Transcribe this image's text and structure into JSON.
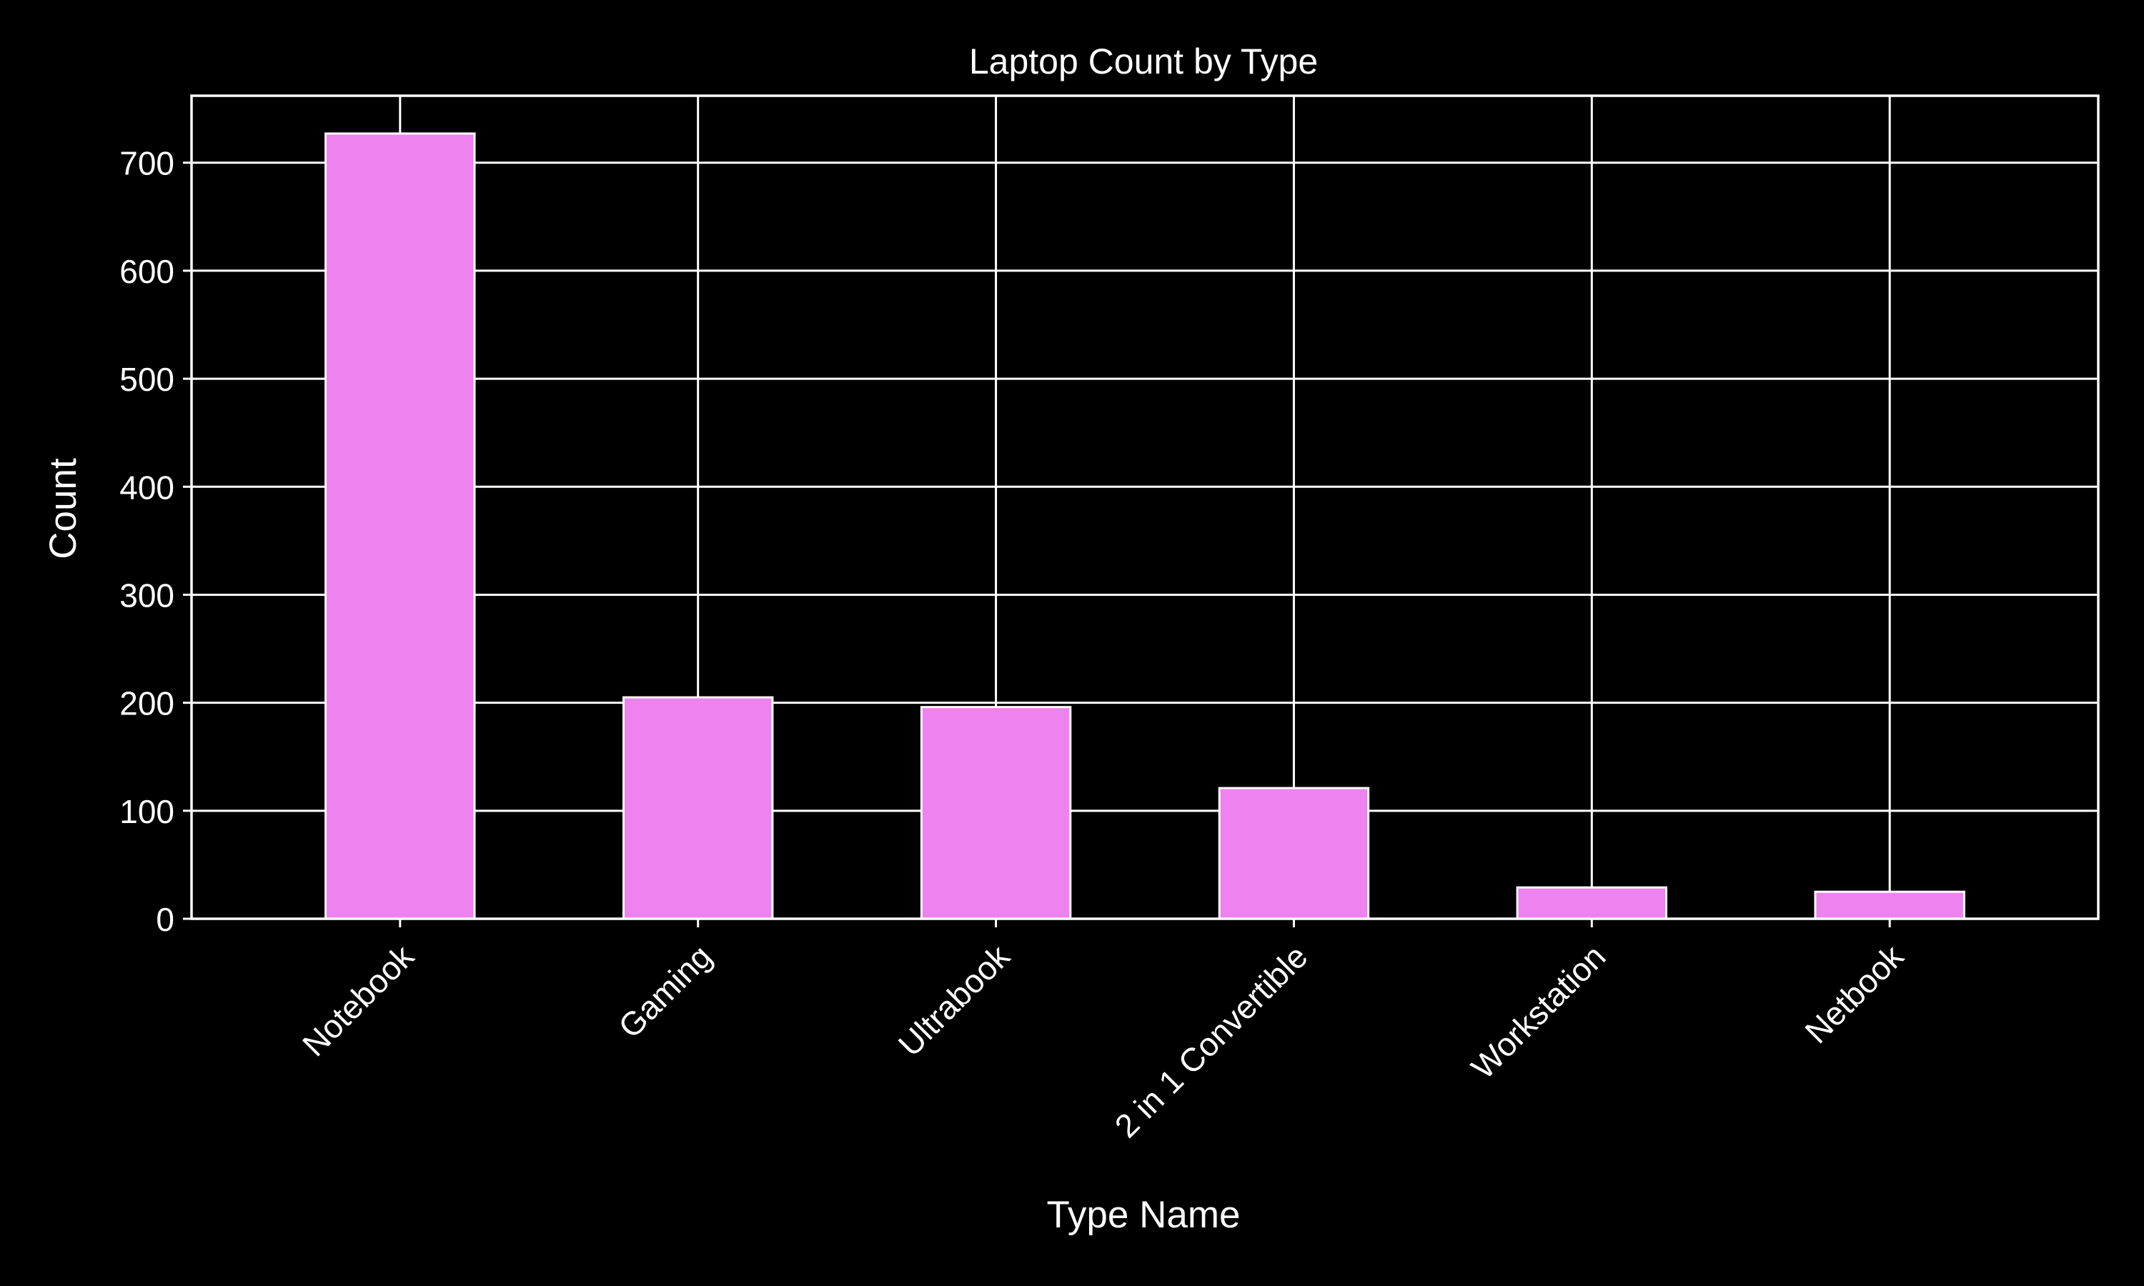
{
  "chart_data": {
    "type": "bar",
    "title": "Laptop Count by Type",
    "xlabel": "Type Name",
    "ylabel": "Count",
    "categories": [
      "Notebook",
      "Gaming",
      "Ultrabook",
      "2 in 1 Convertible",
      "Workstation",
      "Netbook"
    ],
    "values": [
      727,
      205,
      196,
      121,
      29,
      25
    ],
    "ylim": [
      0,
      762
    ],
    "yticks": [
      0,
      100,
      200,
      300,
      400,
      500,
      600,
      700
    ],
    "grid": true,
    "legend": "none"
  },
  "colors": {
    "background": "#000000",
    "bar_fill": "#ee82ee",
    "bar_edge": "#ffffff",
    "axes": "#ffffff",
    "grid": "#ffffff",
    "text": "#ffffff"
  }
}
